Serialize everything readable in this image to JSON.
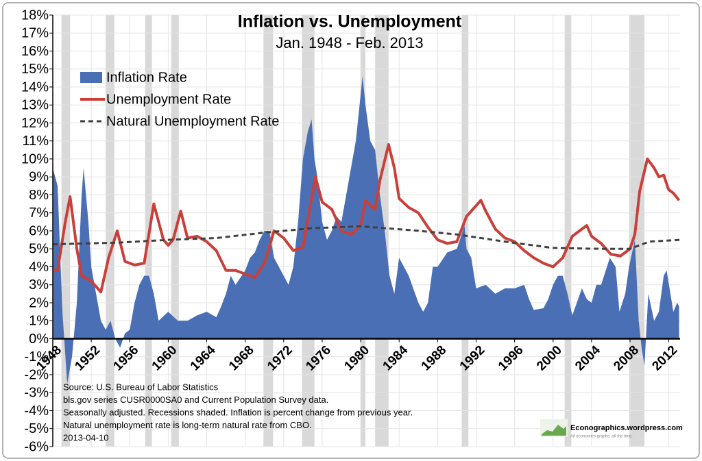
{
  "chart_data": {
    "type": "line",
    "title": "Inflation vs. Unemployment",
    "subtitle": "Jan. 1948 - Feb. 2013",
    "xlim": [
      1948,
      2013.2
    ],
    "xticks": [
      1948,
      1952,
      1956,
      1960,
      1964,
      1968,
      1972,
      1976,
      1980,
      1984,
      1988,
      1992,
      1996,
      2000,
      2004,
      2008,
      2012
    ],
    "ylim": [
      -6,
      18
    ],
    "yticks": [
      {
        "value": -6,
        "label": "-6%"
      },
      {
        "value": -5,
        "label": "-5%"
      },
      {
        "value": -4,
        "label": "-4%"
      },
      {
        "value": -3,
        "label": "-3%"
      },
      {
        "value": -2,
        "label": "-2%"
      },
      {
        "value": -1,
        "label": "-1%"
      },
      {
        "value": 0,
        "label": "0%"
      },
      {
        "value": 1,
        "label": "1%"
      },
      {
        "value": 2,
        "label": "2%"
      },
      {
        "value": 3,
        "label": "3%"
      },
      {
        "value": 4,
        "label": "4%"
      },
      {
        "value": 5,
        "label": "5%"
      },
      {
        "value": 6,
        "label": "6%"
      },
      {
        "value": 7,
        "label": "7%"
      },
      {
        "value": 8,
        "label": "8%"
      },
      {
        "value": 9,
        "label": "9%"
      },
      {
        "value": 10,
        "label": "10%"
      },
      {
        "value": 11,
        "label": "11%"
      },
      {
        "value": 12,
        "label": "12%"
      },
      {
        "value": 13,
        "label": "13%"
      },
      {
        "value": 14,
        "label": "14%"
      },
      {
        "value": 15,
        "label": "15%"
      },
      {
        "value": 16,
        "label": "16%"
      },
      {
        "value": 17,
        "label": "17%"
      },
      {
        "value": 18,
        "label": "18%"
      }
    ],
    "grid": true,
    "legend": "top-left",
    "recession_color": "#d9d9d9",
    "recessions": [
      [
        1948.9,
        1949.8
      ],
      [
        1953.5,
        1954.4
      ],
      [
        1957.6,
        1958.3
      ],
      [
        1960.3,
        1961.1
      ],
      [
        1969.9,
        1970.9
      ],
      [
        1973.9,
        1975.2
      ],
      [
        1980.0,
        1980.5
      ],
      [
        1981.5,
        1982.9
      ],
      [
        1990.5,
        1991.2
      ],
      [
        2001.2,
        2001.9
      ],
      [
        2007.9,
        2009.5
      ]
    ],
    "series": [
      {
        "name": "Inflation Rate",
        "color": "#4a6fb5",
        "style": "area",
        "x": [
          1948,
          1948.5,
          1949,
          1949.5,
          1950,
          1950.5,
          1951,
          1951.2,
          1951.7,
          1952,
          1952.5,
          1953,
          1953.5,
          1954,
          1954.5,
          1955,
          1955.5,
          1956,
          1956.5,
          1957,
          1957.5,
          1958,
          1958.5,
          1959,
          1960,
          1961,
          1962,
          1963,
          1964,
          1965,
          1965.5,
          1966,
          1966.5,
          1967,
          1968,
          1968.5,
          1969,
          1969.5,
          1970,
          1970.5,
          1971,
          1971.5,
          1972,
          1972.5,
          1973,
          1973.5,
          1974,
          1974.5,
          1974.9,
          1975.2,
          1975.5,
          1976,
          1976.5,
          1977,
          1977.5,
          1978,
          1978.5,
          1979,
          1979.5,
          1980.2,
          1980.5,
          1981,
          1981.5,
          1982,
          1982.5,
          1983,
          1983.5,
          1984,
          1985,
          1986,
          1986.5,
          1987,
          1987.5,
          1988,
          1989,
          1990,
          1990.8,
          1991,
          1991.5,
          1992,
          1993,
          1994,
          1995,
          1996,
          1997,
          1997.5,
          1998,
          1999,
          1999.5,
          2000,
          2000.5,
          2001,
          2001.5,
          2002,
          2003,
          2003.5,
          2004,
          2004.5,
          2005,
          2005.9,
          2006.5,
          2006.9,
          2007.5,
          2007.9,
          2008.5,
          2008.9,
          2009.2,
          2009.5,
          2009.9,
          2010.5,
          2011,
          2011.5,
          2011.8,
          2012.2,
          2012.5,
          2012.9,
          2013.1
        ],
        "values": [
          9.5,
          8.5,
          1.5,
          -2.5,
          -1,
          2,
          8,
          9.5,
          6.5,
          4,
          2.5,
          1,
          0.5,
          1,
          0,
          -0.5,
          0.3,
          0.5,
          2,
          3,
          3.5,
          3.5,
          2.5,
          1,
          1.5,
          1,
          1,
          1.3,
          1.5,
          1.2,
          1.8,
          2.5,
          3.5,
          3,
          3.8,
          4.5,
          4.8,
          5.5,
          6,
          6,
          4.5,
          4,
          3.5,
          3,
          4,
          6.5,
          10,
          11.5,
          12.2,
          10,
          9,
          6.5,
          5.5,
          6,
          6.8,
          6.5,
          8,
          9.5,
          11,
          14.6,
          13,
          11,
          10.5,
          8,
          6,
          3.5,
          2.5,
          4.5,
          3.5,
          2,
          1.5,
          2,
          4,
          4,
          4.8,
          5,
          6.3,
          5,
          4.5,
          2.8,
          3,
          2.5,
          2.8,
          2.8,
          3,
          2.2,
          1.6,
          1.7,
          2.2,
          3,
          3.5,
          3.5,
          2.5,
          1.3,
          2.8,
          2.2,
          2,
          3,
          3,
          4.5,
          4,
          1.5,
          2.5,
          4,
          5.5,
          1,
          -0.5,
          -1.5,
          2.5,
          1,
          1.5,
          3.5,
          3.8,
          2.5,
          1.5,
          2,
          1.8
        ]
      },
      {
        "name": "Unemployment Rate",
        "color": "#c9403a",
        "style": "line",
        "x": [
          1948,
          1948.5,
          1949.3,
          1949.8,
          1950.5,
          1951,
          1952,
          1953,
          1953.8,
          1954.7,
          1955.5,
          1956.5,
          1957.5,
          1958.5,
          1959.5,
          1960,
          1960.5,
          1961.3,
          1962,
          1963,
          1964,
          1965,
          1966,
          1967,
          1968,
          1969,
          1970,
          1971,
          1972,
          1973,
          1974,
          1975.3,
          1976,
          1977,
          1978,
          1979,
          1980,
          1980.5,
          1981,
          1981.5,
          1982,
          1982.9,
          1983.5,
          1984,
          1985,
          1986,
          1987,
          1988,
          1989,
          1990,
          1991,
          1992.5,
          1993,
          1994,
          1995,
          1996,
          1997,
          1998,
          1999,
          2000,
          2001,
          2002,
          2003.5,
          2004,
          2005,
          2006,
          2007,
          2008,
          2008.5,
          2009,
          2009.8,
          2010.5,
          2011,
          2011.5,
          2012,
          2012.5,
          2013.1
        ],
        "values": [
          3.8,
          3.8,
          6.5,
          7.9,
          5,
          3.5,
          3.2,
          2.6,
          4.5,
          6,
          4.3,
          4.1,
          4.2,
          7.5,
          5.5,
          5.2,
          5.5,
          7.1,
          5.6,
          5.7,
          5.4,
          4.9,
          3.8,
          3.8,
          3.6,
          3.4,
          4.2,
          6,
          5.6,
          4.9,
          5.1,
          9,
          7.6,
          7.2,
          6,
          5.8,
          6.3,
          7.7,
          7.4,
          7.2,
          8.8,
          10.8,
          9.5,
          7.8,
          7.3,
          7,
          6.2,
          5.5,
          5.3,
          5.4,
          6.8,
          7.7,
          7.1,
          6.1,
          5.6,
          5.4,
          4.9,
          4.5,
          4.2,
          4,
          4.5,
          5.7,
          6.3,
          5.7,
          5.3,
          4.7,
          4.6,
          5,
          5.8,
          8.2,
          10,
          9.5,
          9,
          9.1,
          8.3,
          8.1,
          7.7
        ]
      },
      {
        "name": "Natural Unemployment Rate",
        "color": "#404040",
        "style": "dashed",
        "x": [
          1948,
          1955,
          1960,
          1965,
          1970,
          1975,
          1980,
          1985,
          1990,
          1995,
          2000,
          2005,
          2008,
          2010,
          2013.2
        ],
        "values": [
          5.25,
          5.35,
          5.5,
          5.6,
          5.9,
          6.15,
          6.25,
          6.05,
          5.8,
          5.4,
          5.05,
          5,
          5,
          5.4,
          5.5
        ]
      }
    ],
    "notes": [
      "Source: U.S. Bureau of Labor Statistics",
      "bls.gov series CUSR0000SA0 and Current Population Survey data.",
      "Seasonally adjusted. Recessions shaded. Inflation is percent change from previous year.",
      "Natural unemployment rate is long-term natural rate from CBO.",
      "2013-04-10"
    ],
    "logo": {
      "title": "Econographics.wordpress.com",
      "tagline": "All economics graphs, all the time."
    }
  }
}
